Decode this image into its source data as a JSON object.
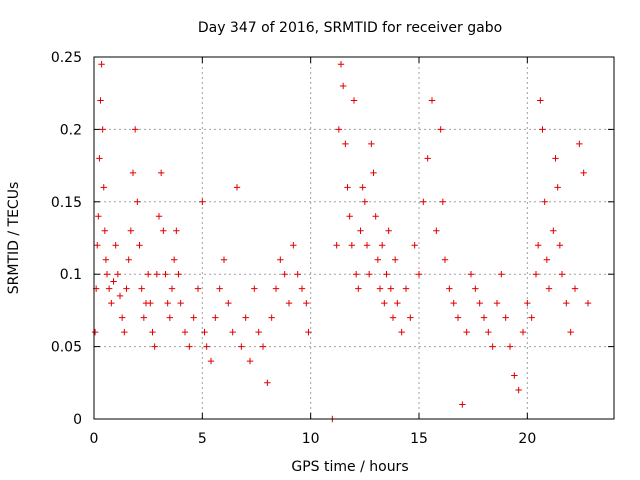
{
  "chart_data": {
    "type": "scatter",
    "title": "Day 347 of 2016, SRMTID for receiver gabo",
    "xlabel": "GPS time / hours",
    "ylabel": "SRMTID / TECUs",
    "xlim": [
      0,
      24
    ],
    "ylim": [
      0,
      0.25
    ],
    "x_ticks": [
      0,
      5,
      10,
      15,
      20
    ],
    "x_tick_labels": [
      "0",
      "5",
      "10",
      "15",
      "20"
    ],
    "y_ticks": [
      0,
      0.05,
      0.1,
      0.15,
      0.2,
      0.25
    ],
    "y_tick_labels": [
      "0",
      "0.05",
      "0.1",
      "0.15",
      "0.2",
      "0.25"
    ],
    "grid": true,
    "marker": "plus",
    "color": "#e00000",
    "series": [
      {
        "name": "SRMTID",
        "points": [
          [
            0.05,
            0.06
          ],
          [
            0.1,
            0.09
          ],
          [
            0.15,
            0.12
          ],
          [
            0.2,
            0.14
          ],
          [
            0.25,
            0.18
          ],
          [
            0.3,
            0.22
          ],
          [
            0.35,
            0.245
          ],
          [
            0.4,
            0.2
          ],
          [
            0.45,
            0.16
          ],
          [
            0.5,
            0.13
          ],
          [
            0.55,
            0.11
          ],
          [
            0.6,
            0.1
          ],
          [
            0.7,
            0.09
          ],
          [
            0.8,
            0.08
          ],
          [
            0.9,
            0.095
          ],
          [
            1.0,
            0.12
          ],
          [
            1.1,
            0.1
          ],
          [
            1.2,
            0.085
          ],
          [
            1.3,
            0.07
          ],
          [
            1.4,
            0.06
          ],
          [
            1.5,
            0.09
          ],
          [
            1.6,
            0.11
          ],
          [
            1.7,
            0.13
          ],
          [
            1.8,
            0.17
          ],
          [
            1.9,
            0.2
          ],
          [
            2.0,
            0.15
          ],
          [
            2.1,
            0.12
          ],
          [
            2.2,
            0.09
          ],
          [
            2.3,
            0.07
          ],
          [
            2.4,
            0.08
          ],
          [
            2.5,
            0.1
          ],
          [
            2.6,
            0.08
          ],
          [
            2.7,
            0.06
          ],
          [
            2.8,
            0.05
          ],
          [
            2.9,
            0.1
          ],
          [
            3.0,
            0.14
          ],
          [
            3.1,
            0.17
          ],
          [
            3.2,
            0.13
          ],
          [
            3.3,
            0.1
          ],
          [
            3.4,
            0.08
          ],
          [
            3.5,
            0.07
          ],
          [
            3.6,
            0.09
          ],
          [
            3.7,
            0.11
          ],
          [
            3.8,
            0.13
          ],
          [
            3.9,
            0.1
          ],
          [
            4.0,
            0.08
          ],
          [
            4.2,
            0.06
          ],
          [
            4.4,
            0.05
          ],
          [
            4.6,
            0.07
          ],
          [
            4.8,
            0.09
          ],
          [
            5.0,
            0.15
          ],
          [
            5.1,
            0.06
          ],
          [
            5.2,
            0.05
          ],
          [
            5.4,
            0.04
          ],
          [
            5.6,
            0.07
          ],
          [
            5.8,
            0.09
          ],
          [
            6.0,
            0.11
          ],
          [
            6.2,
            0.08
          ],
          [
            6.4,
            0.06
          ],
          [
            6.6,
            0.16
          ],
          [
            6.8,
            0.05
          ],
          [
            7.0,
            0.07
          ],
          [
            7.2,
            0.04
          ],
          [
            7.4,
            0.09
          ],
          [
            7.6,
            0.06
          ],
          [
            7.8,
            0.05
          ],
          [
            8.0,
            0.025
          ],
          [
            8.2,
            0.07
          ],
          [
            8.4,
            0.09
          ],
          [
            8.6,
            0.11
          ],
          [
            8.8,
            0.1
          ],
          [
            9.0,
            0.08
          ],
          [
            9.2,
            0.12
          ],
          [
            9.4,
            0.1
          ],
          [
            9.6,
            0.09
          ],
          [
            9.8,
            0.08
          ],
          [
            9.9,
            0.06
          ],
          [
            11.0,
            0.0
          ],
          [
            11.2,
            0.12
          ],
          [
            11.3,
            0.2
          ],
          [
            11.4,
            0.245
          ],
          [
            11.5,
            0.23
          ],
          [
            11.6,
            0.19
          ],
          [
            11.7,
            0.16
          ],
          [
            11.8,
            0.14
          ],
          [
            11.9,
            0.12
          ],
          [
            12.0,
            0.22
          ],
          [
            12.1,
            0.1
          ],
          [
            12.2,
            0.09
          ],
          [
            12.3,
            0.13
          ],
          [
            12.4,
            0.16
          ],
          [
            12.5,
            0.15
          ],
          [
            12.6,
            0.12
          ],
          [
            12.7,
            0.1
          ],
          [
            12.8,
            0.19
          ],
          [
            12.9,
            0.17
          ],
          [
            13.0,
            0.14
          ],
          [
            13.1,
            0.11
          ],
          [
            13.2,
            0.09
          ],
          [
            13.3,
            0.12
          ],
          [
            13.4,
            0.08
          ],
          [
            13.5,
            0.1
          ],
          [
            13.6,
            0.13
          ],
          [
            13.7,
            0.09
          ],
          [
            13.8,
            0.07
          ],
          [
            13.9,
            0.11
          ],
          [
            14.0,
            0.08
          ],
          [
            14.2,
            0.06
          ],
          [
            14.4,
            0.09
          ],
          [
            14.6,
            0.07
          ],
          [
            14.8,
            0.12
          ],
          [
            15.0,
            0.1
          ],
          [
            15.2,
            0.15
          ],
          [
            15.4,
            0.18
          ],
          [
            15.6,
            0.22
          ],
          [
            15.8,
            0.13
          ],
          [
            16.0,
            0.2
          ],
          [
            16.1,
            0.15
          ],
          [
            16.2,
            0.11
          ],
          [
            16.4,
            0.09
          ],
          [
            16.6,
            0.08
          ],
          [
            16.8,
            0.07
          ],
          [
            17.0,
            0.01
          ],
          [
            17.2,
            0.06
          ],
          [
            17.4,
            0.1
          ],
          [
            17.6,
            0.09
          ],
          [
            17.8,
            0.08
          ],
          [
            18.0,
            0.07
          ],
          [
            18.2,
            0.06
          ],
          [
            18.4,
            0.05
          ],
          [
            18.6,
            0.08
          ],
          [
            18.8,
            0.1
          ],
          [
            19.0,
            0.07
          ],
          [
            19.2,
            0.05
          ],
          [
            19.4,
            0.03
          ],
          [
            19.6,
            0.02
          ],
          [
            19.8,
            0.06
          ],
          [
            20.0,
            0.08
          ],
          [
            20.2,
            0.07
          ],
          [
            20.4,
            0.1
          ],
          [
            20.5,
            0.12
          ],
          [
            20.6,
            0.22
          ],
          [
            20.7,
            0.2
          ],
          [
            20.8,
            0.15
          ],
          [
            20.9,
            0.11
          ],
          [
            21.0,
            0.09
          ],
          [
            21.2,
            0.13
          ],
          [
            21.3,
            0.18
          ],
          [
            21.4,
            0.16
          ],
          [
            21.5,
            0.12
          ],
          [
            21.6,
            0.1
          ],
          [
            21.8,
            0.08
          ],
          [
            22.0,
            0.06
          ],
          [
            22.2,
            0.09
          ],
          [
            22.4,
            0.19
          ],
          [
            22.6,
            0.17
          ],
          [
            22.8,
            0.08
          ]
        ]
      }
    ]
  }
}
